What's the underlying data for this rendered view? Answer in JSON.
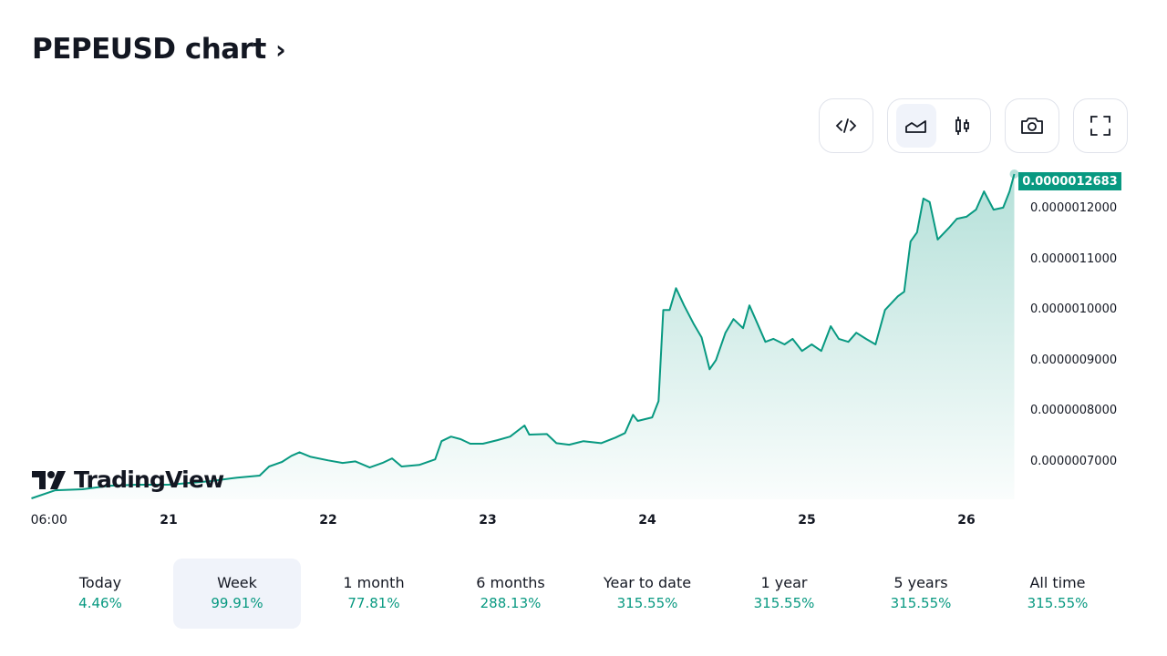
{
  "header": {
    "title": "PEPEUSD chart",
    "chevron": "›"
  },
  "toolbar": {
    "embed_icon": "code-icon",
    "area_icon": "area-chart-icon",
    "candle_icon": "candlestick-icon",
    "snapshot_icon": "camera-icon",
    "fullscreen_icon": "fullscreen-icon",
    "active_style": "area"
  },
  "branding": {
    "logo_text": "TradingView"
  },
  "accent": "#089981",
  "chart_data": {
    "type": "area",
    "symbol": "PEPEUSD",
    "last_price_label": "0.0000012683",
    "y_ticks": [
      "0.0000012000",
      "0.0000011000",
      "0.0000010000",
      "0.0000009000",
      "0.0000008000",
      "0.0000007000"
    ],
    "y_tick_values": [
      1.2e-06,
      1.1e-06,
      1e-06,
      9e-07,
      8e-07,
      7e-07
    ],
    "x_ticks": [
      {
        "label": "06:00",
        "day": 20.25,
        "bold": false
      },
      {
        "label": "21",
        "day": 21,
        "bold": true
      },
      {
        "label": "22",
        "day": 22,
        "bold": true
      },
      {
        "label": "23",
        "day": 23,
        "bold": true
      },
      {
        "label": "24",
        "day": 24,
        "bold": true
      },
      {
        "label": "25",
        "day": 25,
        "bold": true
      },
      {
        "label": "26",
        "day": 26,
        "bold": true
      }
    ],
    "x": [
      20.14,
      20.29,
      20.46,
      20.63,
      20.8,
      21,
      21.26,
      21.43,
      21.57,
      21.63,
      21.71,
      21.77,
      21.82,
      21.89,
      22,
      22.09,
      22.17,
      22.26,
      22.34,
      22.4,
      22.46,
      22.57,
      22.67,
      22.71,
      22.77,
      22.83,
      22.89,
      22.97,
      23.06,
      23.14,
      23.23,
      23.26,
      23.37,
      23.43,
      23.51,
      23.6,
      23.71,
      23.8,
      23.86,
      23.91,
      23.94,
      24.03,
      24.07,
      24.1,
      24.14,
      24.18,
      24.23,
      24.29,
      24.34,
      24.39,
      24.43,
      24.49,
      24.54,
      24.6,
      24.64,
      24.69,
      24.74,
      24.79,
      24.86,
      24.91,
      24.97,
      25.03,
      25.09,
      25.15,
      25.2,
      25.26,
      25.31,
      25.37,
      25.43,
      25.49,
      25.57,
      25.61,
      25.65,
      25.69,
      25.73,
      25.77,
      25.82,
      25.89,
      25.94,
      26,
      26.06,
      26.11,
      26.17,
      26.23,
      26.27,
      26.3
    ],
    "y": [
      6.28e-07,
      6.44e-07,
      6.46e-07,
      6.53e-07,
      6.55e-07,
      6.55e-07,
      6.62e-07,
      6.69e-07,
      6.73e-07,
      6.91e-07,
      7e-07,
      7.12e-07,
      7.19e-07,
      7.1e-07,
      7.03e-07,
      6.98e-07,
      7.01e-07,
      6.89e-07,
      6.98e-07,
      7.07e-07,
      6.91e-07,
      6.94e-07,
      7.05e-07,
      7.41e-07,
      7.5e-07,
      7.45e-07,
      7.36e-07,
      7.36e-07,
      7.43e-07,
      7.5e-07,
      7.72e-07,
      7.54e-07,
      7.55e-07,
      7.37e-07,
      7.34e-07,
      7.41e-07,
      7.37e-07,
      7.48e-07,
      7.57e-07,
      7.93e-07,
      7.81e-07,
      7.88e-07,
      8.2e-07,
      1e-06,
      1e-06,
      1.043e-06,
      1.009e-06,
      9.73e-07,
      9.46e-07,
      8.83e-07,
      9.01e-07,
      9.55e-07,
      9.82e-07,
      9.64e-07,
      1.009e-06,
      9.73e-07,
      9.37e-07,
      9.43e-07,
      9.32e-07,
      9.43e-07,
      9.19e-07,
      9.32e-07,
      9.19e-07,
      9.68e-07,
      9.43e-07,
      9.37e-07,
      9.55e-07,
      9.43e-07,
      9.32e-07,
      1e-06,
      1.027e-06,
      1.036e-06,
      1.135e-06,
      1.153e-06,
      1.22e-06,
      1.213e-06,
      1.139e-06,
      1.162e-06,
      1.18e-06,
      1.184e-06,
      1.198e-06,
      1.234e-06,
      1.198e-06,
      1.202e-06,
      1.234e-06,
      1.2683e-06
    ],
    "line_color": "#089981"
  },
  "periods": [
    {
      "label": "Today",
      "value": "4.46%",
      "active": false
    },
    {
      "label": "Week",
      "value": "99.91%",
      "active": true
    },
    {
      "label": "1 month",
      "value": "77.81%",
      "active": false
    },
    {
      "label": "6 months",
      "value": "288.13%",
      "active": false
    },
    {
      "label": "Year to date",
      "value": "315.55%",
      "active": false
    },
    {
      "label": "1 year",
      "value": "315.55%",
      "active": false
    },
    {
      "label": "5 years",
      "value": "315.55%",
      "active": false
    },
    {
      "label": "All time",
      "value": "315.55%",
      "active": false
    }
  ]
}
